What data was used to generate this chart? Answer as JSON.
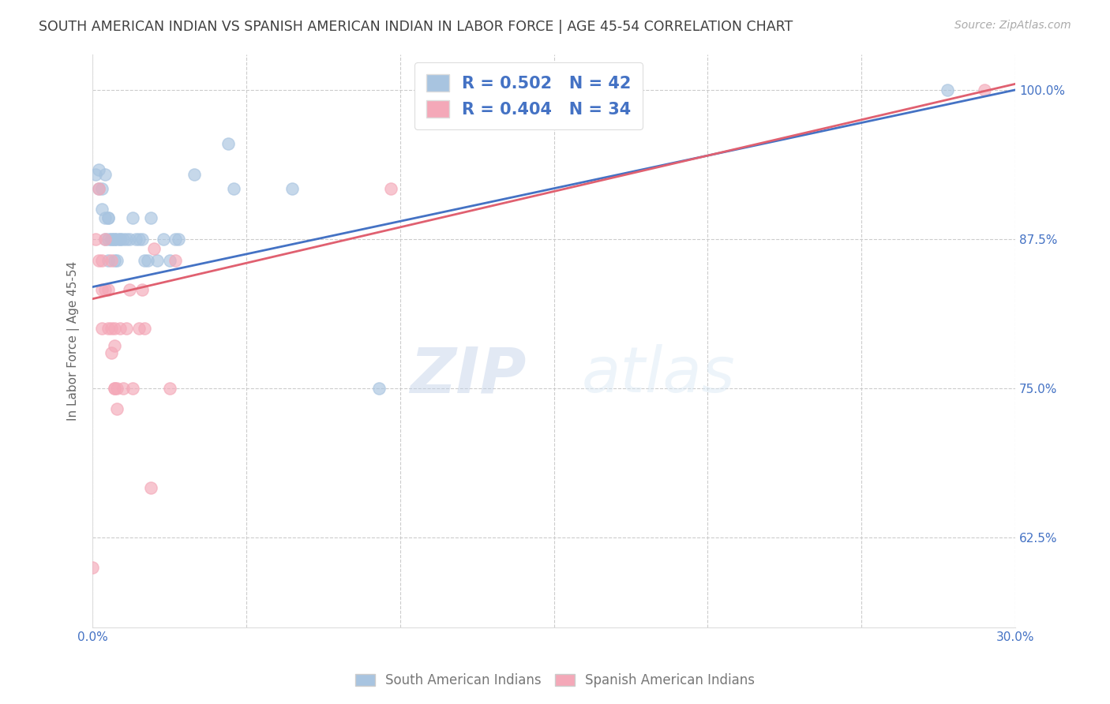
{
  "title": "SOUTH AMERICAN INDIAN VS SPANISH AMERICAN INDIAN IN LABOR FORCE | AGE 45-54 CORRELATION CHART",
  "source": "Source: ZipAtlas.com",
  "ylabel": "In Labor Force | Age 45-54",
  "blue_label": "South American Indians",
  "pink_label": "Spanish American Indians",
  "blue_R": 0.502,
  "blue_N": 42,
  "pink_R": 0.404,
  "pink_N": 34,
  "xlim": [
    0.0,
    0.3
  ],
  "ylim": [
    0.55,
    1.03
  ],
  "yticks": [
    0.625,
    0.75,
    0.875,
    1.0
  ],
  "ytick_labels": [
    "62.5%",
    "75.0%",
    "87.5%",
    "100.0%"
  ],
  "xticks": [
    0.0,
    0.05,
    0.1,
    0.15,
    0.2,
    0.25,
    0.3
  ],
  "blue_line_x0": 0.0,
  "blue_line_y0": 0.835,
  "blue_line_x1": 0.3,
  "blue_line_y1": 1.0,
  "pink_line_x0": 0.0,
  "pink_line_y0": 0.825,
  "pink_line_x1": 0.3,
  "pink_line_y1": 1.005,
  "blue_x": [
    0.001,
    0.002,
    0.002,
    0.003,
    0.003,
    0.004,
    0.004,
    0.004,
    0.005,
    0.005,
    0.005,
    0.005,
    0.006,
    0.006,
    0.007,
    0.007,
    0.007,
    0.008,
    0.008,
    0.009,
    0.009,
    0.01,
    0.011,
    0.012,
    0.013,
    0.014,
    0.015,
    0.016,
    0.017,
    0.018,
    0.019,
    0.021,
    0.023,
    0.025,
    0.027,
    0.028,
    0.033,
    0.044,
    0.046,
    0.065,
    0.093,
    0.278
  ],
  "blue_y": [
    0.929,
    0.917,
    0.933,
    0.9,
    0.917,
    0.893,
    0.929,
    0.875,
    0.893,
    0.893,
    0.875,
    0.857,
    0.875,
    0.875,
    0.875,
    0.875,
    0.857,
    0.875,
    0.857,
    0.875,
    0.875,
    0.875,
    0.875,
    0.875,
    0.893,
    0.875,
    0.875,
    0.875,
    0.857,
    0.857,
    0.893,
    0.857,
    0.875,
    0.857,
    0.875,
    0.875,
    0.929,
    0.955,
    0.917,
    0.917,
    0.75,
    1.0
  ],
  "pink_x": [
    0.0,
    0.001,
    0.002,
    0.002,
    0.003,
    0.003,
    0.003,
    0.004,
    0.004,
    0.005,
    0.005,
    0.006,
    0.006,
    0.006,
    0.007,
    0.007,
    0.007,
    0.007,
    0.008,
    0.008,
    0.009,
    0.01,
    0.011,
    0.012,
    0.013,
    0.015,
    0.016,
    0.017,
    0.019,
    0.02,
    0.025,
    0.027,
    0.097,
    0.29
  ],
  "pink_y": [
    0.6,
    0.875,
    0.917,
    0.857,
    0.857,
    0.833,
    0.8,
    0.833,
    0.875,
    0.833,
    0.8,
    0.857,
    0.8,
    0.78,
    0.786,
    0.8,
    0.75,
    0.75,
    0.733,
    0.75,
    0.8,
    0.75,
    0.8,
    0.833,
    0.75,
    0.8,
    0.833,
    0.8,
    0.667,
    0.867,
    0.75,
    0.857,
    0.917,
    1.0
  ],
  "blue_color": "#a8c4e0",
  "pink_color": "#f4a8b8",
  "blue_line_color": "#4472c4",
  "pink_line_color": "#e06070",
  "grid_color": "#cccccc",
  "title_color": "#404040",
  "axis_color": "#4472c4",
  "watermark_zip": "ZIP",
  "watermark_atlas": "atlas",
  "marker_size": 11,
  "marker_alpha": 0.65,
  "line_width": 2.0
}
